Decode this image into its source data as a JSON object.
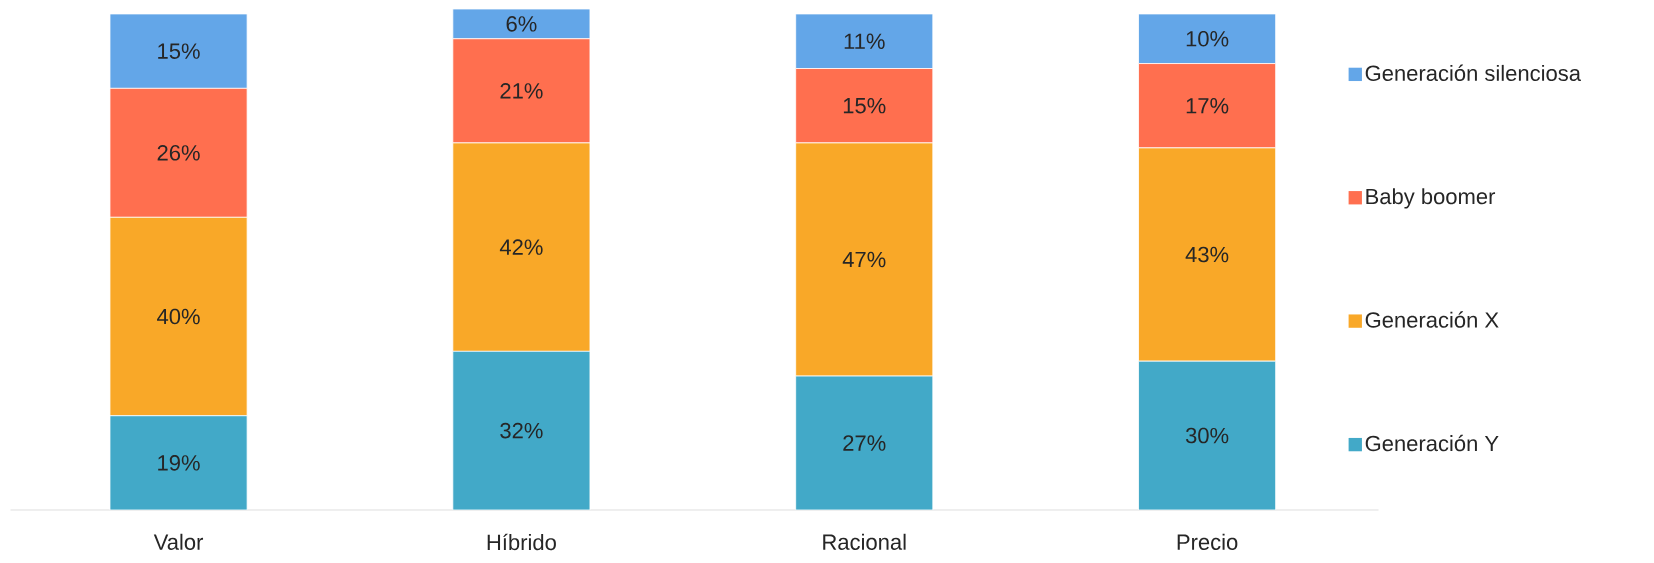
{
  "chart_data": {
    "type": "bar",
    "stacked": true,
    "legend": "right",
    "categories": [
      "Valor",
      "Híbrido",
      "Racional",
      "Precio"
    ],
    "series": [
      {
        "name": "Generación Y",
        "color": "#42a9c8",
        "values": [
          19,
          32,
          27,
          30
        ],
        "value_labels": [
          "19%",
          "32%",
          "27%",
          "30%"
        ]
      },
      {
        "name": "Generación X",
        "color": "#f9a828",
        "values": [
          40,
          42,
          47,
          43
        ],
        "value_labels": [
          "40%",
          "42%",
          "47%",
          "43%"
        ]
      },
      {
        "name": "Baby boomer",
        "color": "#ff6f4f",
        "values": [
          26,
          21,
          15,
          17
        ],
        "value_labels": [
          "26%",
          "21%",
          "15%",
          "17%"
        ]
      },
      {
        "name": "Generación silenciosa",
        "color": "#63a6e8",
        "values": [
          15,
          6,
          11,
          10
        ],
        "value_labels": [
          "15%",
          "6%",
          "11%",
          "10%"
        ]
      }
    ]
  }
}
